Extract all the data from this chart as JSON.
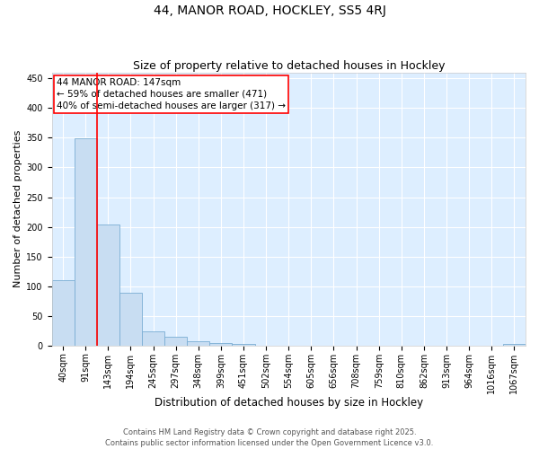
{
  "title": "44, MANOR ROAD, HOCKLEY, SS5 4RJ",
  "subtitle": "Size of property relative to detached houses in Hockley",
  "xlabel": "Distribution of detached houses by size in Hockley",
  "ylabel": "Number of detached properties",
  "bins": [
    "40sqm",
    "91sqm",
    "143sqm",
    "194sqm",
    "245sqm",
    "297sqm",
    "348sqm",
    "399sqm",
    "451sqm",
    "502sqm",
    "554sqm",
    "605sqm",
    "656sqm",
    "708sqm",
    "759sqm",
    "810sqm",
    "862sqm",
    "913sqm",
    "964sqm",
    "1016sqm",
    "1067sqm"
  ],
  "values": [
    110,
    349,
    204,
    89,
    24,
    15,
    7,
    5,
    3,
    0,
    0,
    0,
    0,
    0,
    0,
    0,
    0,
    0,
    0,
    0,
    3
  ],
  "bar_fill_color": "#c8ddf2",
  "bar_edge_color": "#7aadd4",
  "vline_color": "red",
  "annotation_text": "44 MANOR ROAD: 147sqm\n← 59% of detached houses are smaller (471)\n40% of semi-detached houses are larger (317) →",
  "annotation_box_color": "white",
  "annotation_box_edgecolor": "red",
  "ylim": [
    0,
    460
  ],
  "yticks": [
    0,
    50,
    100,
    150,
    200,
    250,
    300,
    350,
    400,
    450
  ],
  "background_color": "#ddeeff",
  "grid_color": "white",
  "footer": "Contains HM Land Registry data © Crown copyright and database right 2025.\nContains public sector information licensed under the Open Government Licence v3.0.",
  "title_fontsize": 10,
  "subtitle_fontsize": 9,
  "xlabel_fontsize": 8.5,
  "ylabel_fontsize": 8,
  "tick_fontsize": 7,
  "annotation_fontsize": 7.5,
  "footer_fontsize": 6
}
